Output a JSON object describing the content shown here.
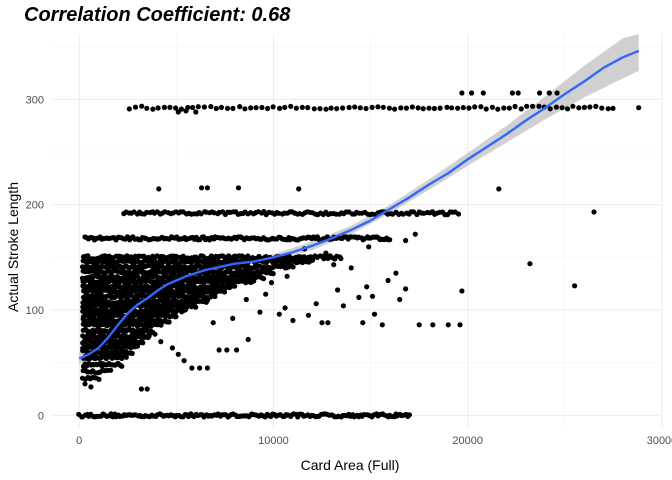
{
  "chart_data": {
    "type": "scatter",
    "title": "Correlation Coefficient: 0.68",
    "xlabel": "Card Area (Full)",
    "ylabel": "Actual Stroke Length",
    "xlim": [
      -1400,
      30000
    ],
    "ylim": [
      -12,
      362
    ],
    "x_ticks": [
      0,
      10000,
      20000,
      30000
    ],
    "x_tick_labels": [
      "0",
      "10000",
      "20000",
      "30000"
    ],
    "y_ticks": [
      0,
      100,
      200,
      300
    ],
    "y_tick_labels": [
      "0",
      "100",
      "200",
      "300"
    ],
    "grid": true,
    "legend": "none",
    "point_color": "#000000",
    "smooth_color": "#3366ff",
    "band_color": "#c8c8c8",
    "bands": [
      {
        "y": 0,
        "x_min": 0,
        "x_max": 17000,
        "count": 170
      },
      {
        "y": 292,
        "x_min": 2600,
        "x_max": 27500,
        "count": 85
      },
      {
        "y": 192,
        "x_min": 2300,
        "x_max": 19500,
        "count": 130
      },
      {
        "y": 168,
        "x_min": 300,
        "x_max": 16000,
        "count": 160
      },
      {
        "y": 150,
        "x_min": 200,
        "x_max": 13500,
        "count": 120
      },
      {
        "y": 146,
        "x_min": 200,
        "x_max": 12000,
        "count": 120
      },
      {
        "y": 141,
        "x_min": 200,
        "x_max": 11000,
        "count": 110
      },
      {
        "y": 136,
        "x_min": 200,
        "x_max": 10000,
        "count": 100
      },
      {
        "y": 131,
        "x_min": 200,
        "x_max": 9500,
        "count": 100
      },
      {
        "y": 127,
        "x_min": 200,
        "x_max": 9000,
        "count": 100
      },
      {
        "y": 122,
        "x_min": 200,
        "x_max": 8000,
        "count": 90
      },
      {
        "y": 118,
        "x_min": 200,
        "x_max": 7500,
        "count": 90
      },
      {
        "y": 113,
        "x_min": 200,
        "x_max": 7000,
        "count": 80
      },
      {
        "y": 108,
        "x_min": 200,
        "x_max": 6600,
        "count": 80
      },
      {
        "y": 104,
        "x_min": 200,
        "x_max": 6000,
        "count": 70
      },
      {
        "y": 99,
        "x_min": 200,
        "x_max": 5500,
        "count": 70
      },
      {
        "y": 95,
        "x_min": 200,
        "x_max": 5000,
        "count": 60
      },
      {
        "y": 90,
        "x_min": 200,
        "x_max": 4600,
        "count": 60
      },
      {
        "y": 86,
        "x_min": 200,
        "x_max": 4200,
        "count": 50
      },
      {
        "y": 80,
        "x_min": 200,
        "x_max": 3800,
        "count": 50
      },
      {
        "y": 75,
        "x_min": 200,
        "x_max": 3600,
        "count": 45
      },
      {
        "y": 70,
        "x_min": 200,
        "x_max": 3300,
        "count": 40
      },
      {
        "y": 65,
        "x_min": 200,
        "x_max": 3000,
        "count": 35
      },
      {
        "y": 60,
        "x_min": 200,
        "x_max": 2700,
        "count": 30
      },
      {
        "y": 55,
        "x_min": 200,
        "x_max": 2400,
        "count": 25
      },
      {
        "y": 48,
        "x_min": 200,
        "x_max": 2200,
        "count": 22
      },
      {
        "y": 42,
        "x_min": 200,
        "x_max": 1600,
        "count": 12
      },
      {
        "y": 35,
        "x_min": 200,
        "x_max": 1000,
        "count": 8
      }
    ],
    "points": [
      {
        "x": 300,
        "y": 30
      },
      {
        "x": 600,
        "y": 27
      },
      {
        "x": 3200,
        "y": 25
      },
      {
        "x": 3500,
        "y": 25
      },
      {
        "x": 4100,
        "y": 215
      },
      {
        "x": 6300,
        "y": 216
      },
      {
        "x": 6600,
        "y": 216
      },
      {
        "x": 8200,
        "y": 216
      },
      {
        "x": 11300,
        "y": 215
      },
      {
        "x": 5100,
        "y": 288
      },
      {
        "x": 5500,
        "y": 289
      },
      {
        "x": 6000,
        "y": 288
      },
      {
        "x": 19700,
        "y": 306
      },
      {
        "x": 20200,
        "y": 306
      },
      {
        "x": 20800,
        "y": 306
      },
      {
        "x": 22300,
        "y": 306
      },
      {
        "x": 22600,
        "y": 306
      },
      {
        "x": 23700,
        "y": 306
      },
      {
        "x": 24200,
        "y": 306
      },
      {
        "x": 24600,
        "y": 306
      },
      {
        "x": 28800,
        "y": 292
      },
      {
        "x": 21600,
        "y": 215
      },
      {
        "x": 26500,
        "y": 193
      },
      {
        "x": 23200,
        "y": 144
      },
      {
        "x": 25500,
        "y": 123
      },
      {
        "x": 19700,
        "y": 118
      },
      {
        "x": 17500,
        "y": 86
      },
      {
        "x": 18200,
        "y": 86
      },
      {
        "x": 19000,
        "y": 86
      },
      {
        "x": 19600,
        "y": 86
      },
      {
        "x": 15600,
        "y": 86
      },
      {
        "x": 15200,
        "y": 96
      },
      {
        "x": 16500,
        "y": 110
      },
      {
        "x": 14400,
        "y": 112
      },
      {
        "x": 13300,
        "y": 119
      },
      {
        "x": 14800,
        "y": 122
      },
      {
        "x": 15900,
        "y": 128
      },
      {
        "x": 16300,
        "y": 135
      },
      {
        "x": 14000,
        "y": 140
      },
      {
        "x": 13100,
        "y": 143
      },
      {
        "x": 12500,
        "y": 88
      },
      {
        "x": 12800,
        "y": 88
      },
      {
        "x": 14600,
        "y": 88
      },
      {
        "x": 11000,
        "y": 90
      },
      {
        "x": 11800,
        "y": 95
      },
      {
        "x": 10300,
        "y": 96
      },
      {
        "x": 9300,
        "y": 98
      },
      {
        "x": 10600,
        "y": 102
      },
      {
        "x": 12200,
        "y": 106
      },
      {
        "x": 13600,
        "y": 104
      },
      {
        "x": 15100,
        "y": 113
      },
      {
        "x": 16800,
        "y": 120
      },
      {
        "x": 11600,
        "y": 158
      },
      {
        "x": 12700,
        "y": 154
      },
      {
        "x": 14900,
        "y": 160
      },
      {
        "x": 16800,
        "y": 166
      },
      {
        "x": 17300,
        "y": 172
      },
      {
        "x": 8700,
        "y": 72
      },
      {
        "x": 8100,
        "y": 62
      },
      {
        "x": 7600,
        "y": 62
      },
      {
        "x": 7200,
        "y": 62
      },
      {
        "x": 6600,
        "y": 45
      },
      {
        "x": 6200,
        "y": 45
      },
      {
        "x": 5800,
        "y": 45
      },
      {
        "x": 5400,
        "y": 52
      },
      {
        "x": 5100,
        "y": 58
      },
      {
        "x": 4800,
        "y": 64
      },
      {
        "x": 4200,
        "y": 70
      },
      {
        "x": 3900,
        "y": 77
      },
      {
        "x": 8600,
        "y": 110
      },
      {
        "x": 9600,
        "y": 115
      },
      {
        "x": 9900,
        "y": 126
      },
      {
        "x": 10700,
        "y": 132
      },
      {
        "x": 7900,
        "y": 92
      },
      {
        "x": 6900,
        "y": 88
      }
    ],
    "smooth_curve": [
      {
        "x": 0,
        "y": 54
      },
      {
        "x": 500,
        "y": 58
      },
      {
        "x": 1000,
        "y": 64
      },
      {
        "x": 1500,
        "y": 74
      },
      {
        "x": 2000,
        "y": 86
      },
      {
        "x": 2500,
        "y": 97
      },
      {
        "x": 3000,
        "y": 105
      },
      {
        "x": 3500,
        "y": 111
      },
      {
        "x": 4000,
        "y": 118
      },
      {
        "x": 4500,
        "y": 124
      },
      {
        "x": 5000,
        "y": 128
      },
      {
        "x": 5500,
        "y": 132
      },
      {
        "x": 6000,
        "y": 135
      },
      {
        "x": 6500,
        "y": 138
      },
      {
        "x": 7000,
        "y": 140
      },
      {
        "x": 7500,
        "y": 142
      },
      {
        "x": 8000,
        "y": 144
      },
      {
        "x": 9000,
        "y": 146
      },
      {
        "x": 10000,
        "y": 150
      },
      {
        "x": 11000,
        "y": 155
      },
      {
        "x": 12000,
        "y": 161
      },
      {
        "x": 13000,
        "y": 168
      },
      {
        "x": 14000,
        "y": 176
      },
      {
        "x": 15000,
        "y": 185
      },
      {
        "x": 16000,
        "y": 196
      },
      {
        "x": 17000,
        "y": 207
      },
      {
        "x": 18000,
        "y": 219
      },
      {
        "x": 19000,
        "y": 230
      },
      {
        "x": 20000,
        "y": 243
      },
      {
        "x": 21000,
        "y": 255
      },
      {
        "x": 22000,
        "y": 267
      },
      {
        "x": 23000,
        "y": 280
      },
      {
        "x": 24000,
        "y": 292
      },
      {
        "x": 25000,
        "y": 305
      },
      {
        "x": 26000,
        "y": 317
      },
      {
        "x": 27000,
        "y": 330
      },
      {
        "x": 28000,
        "y": 340
      },
      {
        "x": 28800,
        "y": 346
      }
    ],
    "confidence_band": [
      {
        "x": 0,
        "lo": 48,
        "hi": 60
      },
      {
        "x": 1000,
        "lo": 61,
        "hi": 67
      },
      {
        "x": 2000,
        "lo": 84,
        "hi": 88
      },
      {
        "x": 3000,
        "lo": 103,
        "hi": 107
      },
      {
        "x": 4000,
        "lo": 116,
        "hi": 120
      },
      {
        "x": 5000,
        "lo": 126,
        "hi": 130
      },
      {
        "x": 6000,
        "lo": 133,
        "hi": 137
      },
      {
        "x": 7000,
        "lo": 138,
        "hi": 142
      },
      {
        "x": 8000,
        "lo": 142,
        "hi": 146
      },
      {
        "x": 10000,
        "lo": 147,
        "hi": 153
      },
      {
        "x": 12000,
        "lo": 157,
        "hi": 165
      },
      {
        "x": 14000,
        "lo": 172,
        "hi": 180
      },
      {
        "x": 16000,
        "lo": 192,
        "hi": 200
      },
      {
        "x": 18000,
        "lo": 214,
        "hi": 224
      },
      {
        "x": 20000,
        "lo": 237,
        "hi": 249
      },
      {
        "x": 22000,
        "lo": 259,
        "hi": 275
      },
      {
        "x": 24000,
        "lo": 281,
        "hi": 303
      },
      {
        "x": 26000,
        "lo": 302,
        "hi": 332
      },
      {
        "x": 28000,
        "lo": 320,
        "hi": 358
      },
      {
        "x": 28800,
        "lo": 327,
        "hi": 362
      }
    ]
  }
}
